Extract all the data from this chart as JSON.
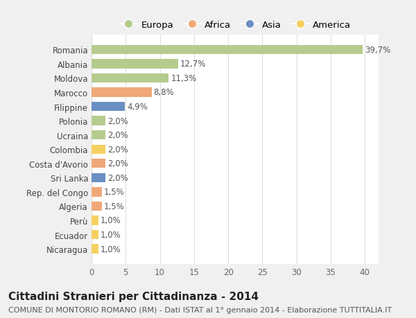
{
  "countries": [
    "Romania",
    "Albania",
    "Moldova",
    "Marocco",
    "Filippine",
    "Polonia",
    "Ucraina",
    "Colombia",
    "Costa d'Avorio",
    "Sri Lanka",
    "Rep. del Congo",
    "Algeria",
    "Perù",
    "Ecuador",
    "Nicaragua"
  ],
  "values": [
    39.7,
    12.7,
    11.3,
    8.8,
    4.9,
    2.0,
    2.0,
    2.0,
    2.0,
    2.0,
    1.5,
    1.5,
    1.0,
    1.0,
    1.0
  ],
  "labels": [
    "39,7%",
    "12,7%",
    "11,3%",
    "8,8%",
    "4,9%",
    "2,0%",
    "2,0%",
    "2,0%",
    "2,0%",
    "2,0%",
    "1,5%",
    "1,5%",
    "1,0%",
    "1,0%",
    "1,0%"
  ],
  "continents": [
    "Europa",
    "Europa",
    "Europa",
    "Africa",
    "Asia",
    "Europa",
    "Europa",
    "America",
    "Africa",
    "Asia",
    "Africa",
    "Africa",
    "America",
    "America",
    "America"
  ],
  "continent_colors": {
    "Europa": "#b5cc8e",
    "Africa": "#f0a878",
    "Asia": "#6b8fc4",
    "America": "#f5d060"
  },
  "legend_order": [
    "Europa",
    "Africa",
    "Asia",
    "America"
  ],
  "title": "Cittadini Stranieri per Cittadinanza - 2014",
  "subtitle": "COMUNE DI MONTORIO ROMANO (RM) - Dati ISTAT al 1° gennaio 2014 - Elaborazione TUTTITALIA.IT",
  "xlim": [
    0,
    42
  ],
  "xticks": [
    0,
    5,
    10,
    15,
    20,
    25,
    30,
    35,
    40
  ],
  "bg_color": "#f0f0f0",
  "plot_bg_color": "#ffffff",
  "grid_color": "#dddddd",
  "bar_height": 0.65,
  "title_fontsize": 11,
  "subtitle_fontsize": 8,
  "label_fontsize": 8.5,
  "tick_fontsize": 8.5,
  "legend_fontsize": 9.5
}
